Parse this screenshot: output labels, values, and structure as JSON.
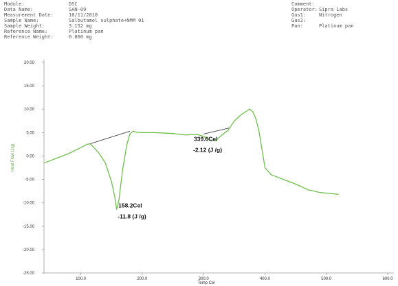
{
  "header": {
    "left": [
      {
        "label": "Module:",
        "value": "DSC"
      },
      {
        "label": "Data Name:",
        "value": "SAN-09"
      },
      {
        "label": "Measurement Date:",
        "value": "10/11/2010"
      },
      {
        "label": "Sample Name:",
        "value": "Salbutamol sulphate+NMM 01"
      },
      {
        "label": "Sample Weight:",
        "value": "3.152 mg"
      },
      {
        "label": "Reference Name:",
        "value": "Platinum pan"
      },
      {
        "label": "Reference Weight:",
        "value": "0.000 mg"
      }
    ],
    "right": [
      {
        "label": "Comment:",
        "value": ""
      },
      {
        "label": "Operator:",
        "value": "Sipra Labs"
      },
      {
        "label": "Gas1:",
        "value": "Nitrogen"
      },
      {
        "label": "Gas2:",
        "value": ""
      },
      {
        "label": "Pan:",
        "value": "Platinum pan"
      }
    ]
  },
  "chart_data": {
    "type": "line",
    "title": "",
    "xlabel": "Temp Cel",
    "ylabel": "Heat Flow (J/g)",
    "xlim": [
      40,
      610
    ],
    "ylim": [
      -25,
      20
    ],
    "x_ticks": [
      100,
      200,
      300,
      400,
      500,
      600
    ],
    "x_tick_labels": [
      "100.0",
      "200.0",
      "300.0",
      "400.0",
      "500.0",
      "600.0"
    ],
    "y_ticks": [
      20,
      15,
      10,
      5,
      0,
      -5,
      -10,
      -15,
      -20,
      -25
    ],
    "y_tick_labels": [
      "20.00",
      "15.00",
      "10.00",
      "5.00",
      "0.00",
      "-5.00",
      "-10.00",
      "-15.00",
      "-20.00",
      "-25.00"
    ],
    "grid": false,
    "series": [
      {
        "color": "#6cc04a",
        "x": [
          40,
          60,
          80,
          100,
          110,
          115,
          120,
          130,
          140,
          150,
          155,
          158.2,
          162,
          168,
          175,
          180,
          185,
          190,
          200,
          220,
          250,
          270,
          290,
          300,
          310,
          320,
          330,
          340,
          350,
          360,
          370,
          375,
          380,
          385,
          390,
          395,
          400,
          410,
          430,
          450,
          470,
          490,
          505,
          520
        ],
        "y": [
          -1.5,
          -0.5,
          0.5,
          1.8,
          2.5,
          2.6,
          2.0,
          0.5,
          -1.5,
          -5.5,
          -8.5,
          -11.4,
          -9.5,
          -3.0,
          2.5,
          4.7,
          5.3,
          5.1,
          5.0,
          5.0,
          4.8,
          4.5,
          4.6,
          4.2,
          3.4,
          3.3,
          4.5,
          5.5,
          7.5,
          8.7,
          9.6,
          10.0,
          9.5,
          8.0,
          5.5,
          1.5,
          -2.5,
          -4.0,
          -5.0,
          -6.0,
          -7.2,
          -7.8,
          -8.0,
          -8.2
        ]
      }
    ],
    "baselines": [
      {
        "color": "#444444",
        "x": [
          115,
          180
        ],
        "y": [
          2.6,
          5.3
        ]
      },
      {
        "color": "#444444",
        "x": [
          300,
          342
        ],
        "y": [
          4.7,
          6.0
        ]
      }
    ],
    "annotations": [
      {
        "x": 160,
        "y": -11.0,
        "lines": [
          "158.2Cel",
          "-11.8 (J /g)"
        ]
      },
      {
        "x": 283,
        "y": 3.2,
        "lines": [
          "339.6Cel",
          "-2.12 (J /g)"
        ]
      }
    ]
  }
}
